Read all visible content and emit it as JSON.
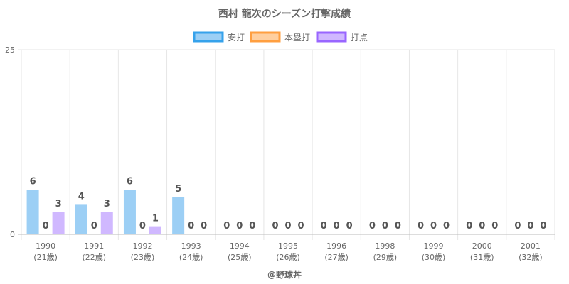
{
  "chart_data": {
    "type": "bar",
    "title": "西村 龍次のシーズン打撃成績",
    "categories": [
      "1990",
      "1991",
      "1992",
      "1993",
      "1994",
      "1995",
      "1996",
      "1998",
      "1999",
      "2000",
      "2001"
    ],
    "sublabels": [
      "(21歳)",
      "(22歳)",
      "(23歳)",
      "(24歳)",
      "(25歳)",
      "(26歳)",
      "(27歳)",
      "(29歳)",
      "(30歳)",
      "(31歳)",
      "(32歳)"
    ],
    "series": [
      {
        "name": "安打",
        "values": [
          6,
          4,
          6,
          5,
          0,
          0,
          0,
          0,
          0,
          0,
          0
        ],
        "fill": "#9ccff5",
        "stroke": "#36a2eb"
      },
      {
        "name": "本塁打",
        "values": [
          0,
          0,
          0,
          0,
          0,
          0,
          0,
          0,
          0,
          0,
          0
        ],
        "fill": "#ffcf9f",
        "stroke": "#ff9f40"
      },
      {
        "name": "打点",
        "values": [
          3,
          3,
          1,
          0,
          0,
          0,
          0,
          0,
          0,
          0,
          0
        ],
        "fill": "#d0b8ff",
        "stroke": "#9966ff"
      }
    ],
    "ylim": [
      0,
      25
    ],
    "yticks": [
      0,
      25
    ],
    "grid": true,
    "legend": "top",
    "credit": "@野球丼"
  }
}
